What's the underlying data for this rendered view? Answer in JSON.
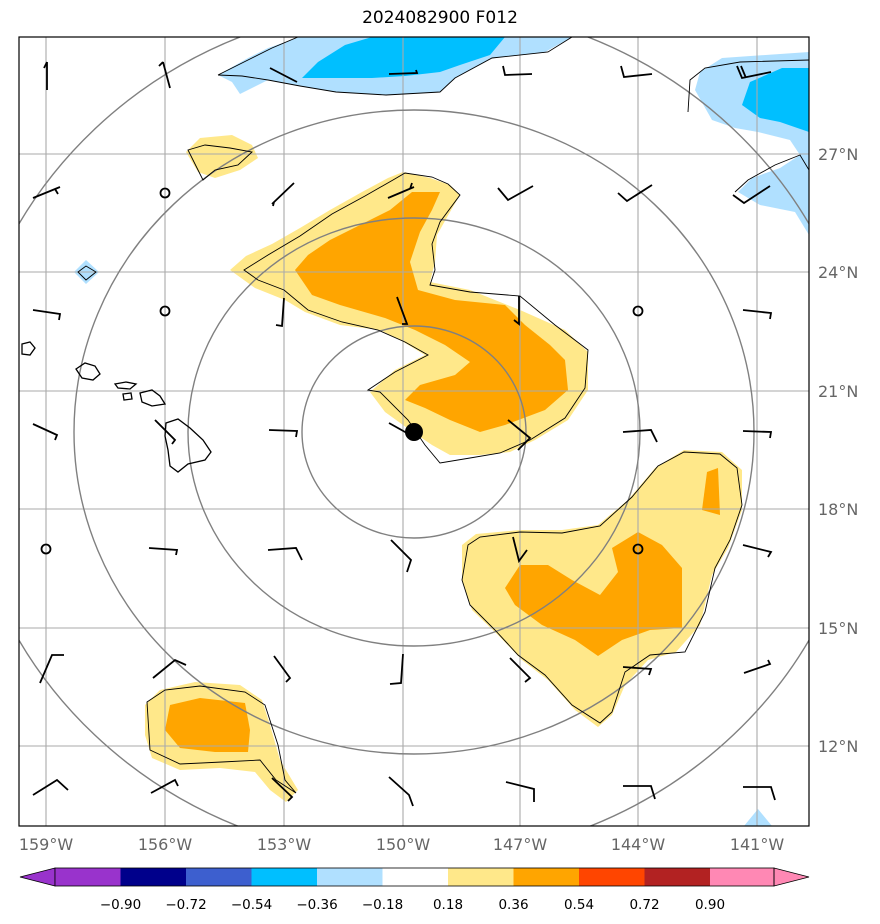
{
  "title": "2024082900 F012",
  "colors": {
    "c_m090": "#9933cc",
    "c_m072": "#00008b",
    "c_m054": "#3d5fcf",
    "c_m036": "#00bfff",
    "c_m018": "#b0e0ff",
    "c_0": "#ffffff",
    "c_p018": "#ffe88a",
    "c_p036": "#ffa500",
    "c_p054": "#ff4500",
    "c_p072": "#b22222",
    "c_p090": "#ff88b4",
    "grid": "#aaaaaa",
    "ring": "#808080",
    "coast": "#000000",
    "barb": "#000000",
    "center": "#000000"
  },
  "lon_labels": [
    "159°W",
    "156°W",
    "153°W",
    "150°W",
    "147°W",
    "144°W",
    "141°W"
  ],
  "lat_labels": [
    "27°N",
    "24°N",
    "21°N",
    "18°N",
    "15°N",
    "12°N"
  ],
  "colorbar": {
    "levels": [
      "−0.90",
      "−0.72",
      "−0.54",
      "−0.36",
      "−0.18",
      "0.18",
      "0.36",
      "0.54",
      "0.72",
      "0.90"
    ],
    "colors": [
      "#9933cc",
      "#00008b",
      "#3d5fcf",
      "#00bfff",
      "#b0e0ff",
      "#ffffff",
      "#ffe88a",
      "#ffa500",
      "#ff4500",
      "#b22222",
      "#ff88b4"
    ]
  },
  "center_marker": {
    "lon": -149.7,
    "lat": 19.9
  }
}
